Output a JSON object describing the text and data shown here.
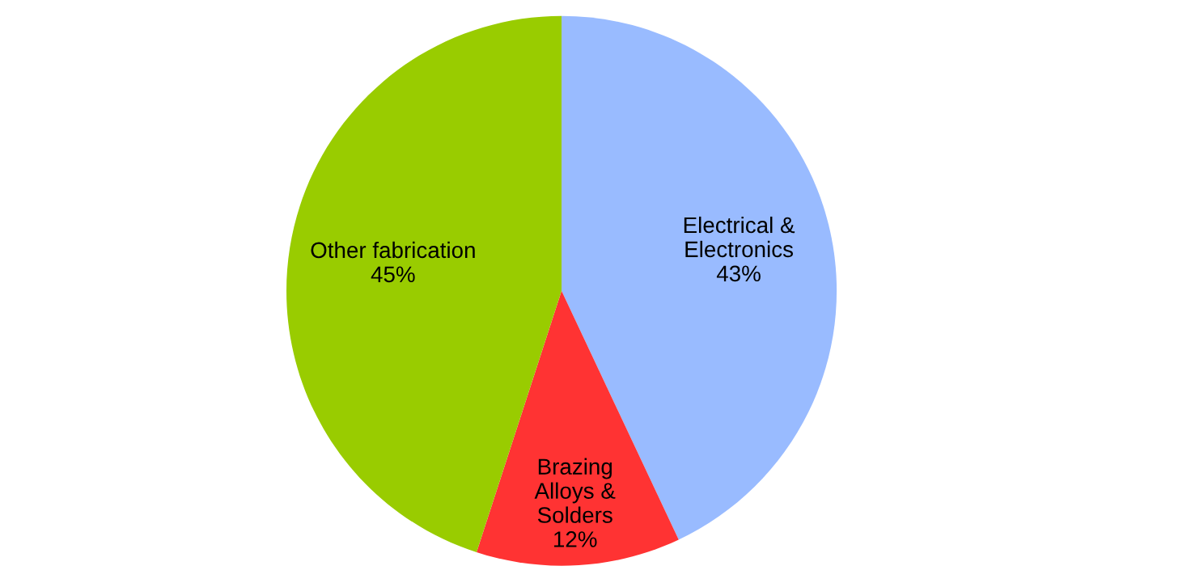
{
  "chart_data": {
    "type": "pie",
    "categories": [
      "Electrical &\nElectronics",
      "Brazing\nAlloys &\nSolders",
      "Other fabrication"
    ],
    "values": [
      43,
      12,
      45
    ],
    "value_labels": [
      "43%",
      "12%",
      "45%"
    ],
    "colors": [
      "#99bbff",
      "#ff3333",
      "#99cc00"
    ],
    "legend": false
  }
}
